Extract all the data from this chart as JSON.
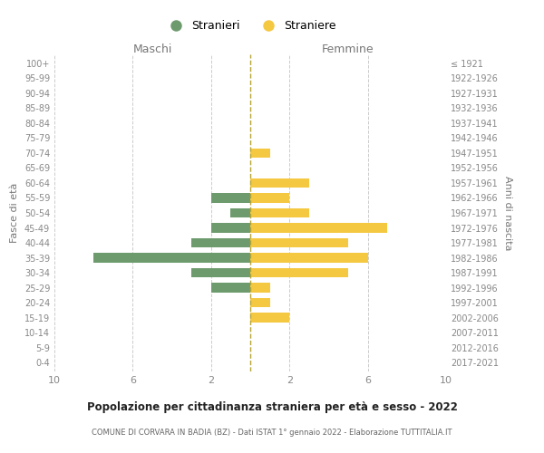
{
  "age_groups": [
    "0-4",
    "5-9",
    "10-14",
    "15-19",
    "20-24",
    "25-29",
    "30-34",
    "35-39",
    "40-44",
    "45-49",
    "50-54",
    "55-59",
    "60-64",
    "65-69",
    "70-74",
    "75-79",
    "80-84",
    "85-89",
    "90-94",
    "95-99",
    "100+"
  ],
  "birth_years": [
    "2017-2021",
    "2012-2016",
    "2007-2011",
    "2002-2006",
    "1997-2001",
    "1992-1996",
    "1987-1991",
    "1982-1986",
    "1977-1981",
    "1972-1976",
    "1967-1971",
    "1962-1966",
    "1957-1961",
    "1952-1956",
    "1947-1951",
    "1942-1946",
    "1937-1941",
    "1932-1936",
    "1927-1931",
    "1922-1926",
    "≤ 1921"
  ],
  "males": [
    0,
    0,
    0,
    0,
    0,
    2,
    3,
    8,
    3,
    2,
    1,
    2,
    0,
    0,
    0,
    0,
    0,
    0,
    0,
    0,
    0
  ],
  "females": [
    0,
    0,
    0,
    2,
    1,
    1,
    5,
    6,
    5,
    7,
    3,
    2,
    3,
    0,
    1,
    0,
    0,
    0,
    0,
    0,
    0
  ],
  "male_color": "#6e9b6e",
  "female_color": "#f5c842",
  "center_line_color": "#b5a434",
  "background_color": "#ffffff",
  "grid_color": "#cccccc",
  "title": "Popolazione per cittadinanza straniera per età e sesso - 2022",
  "subtitle": "COMUNE DI CORVARA IN BADIA (BZ) - Dati ISTAT 1° gennaio 2022 - Elaborazione TUTTITALIA.IT",
  "ylabel_left": "Fasce di età",
  "ylabel_right": "Anni di nascita",
  "xlabel_male": "Maschi",
  "xlabel_female": "Femmine",
  "legend_male": "Stranieri",
  "legend_female": "Straniere",
  "xlim": 10
}
